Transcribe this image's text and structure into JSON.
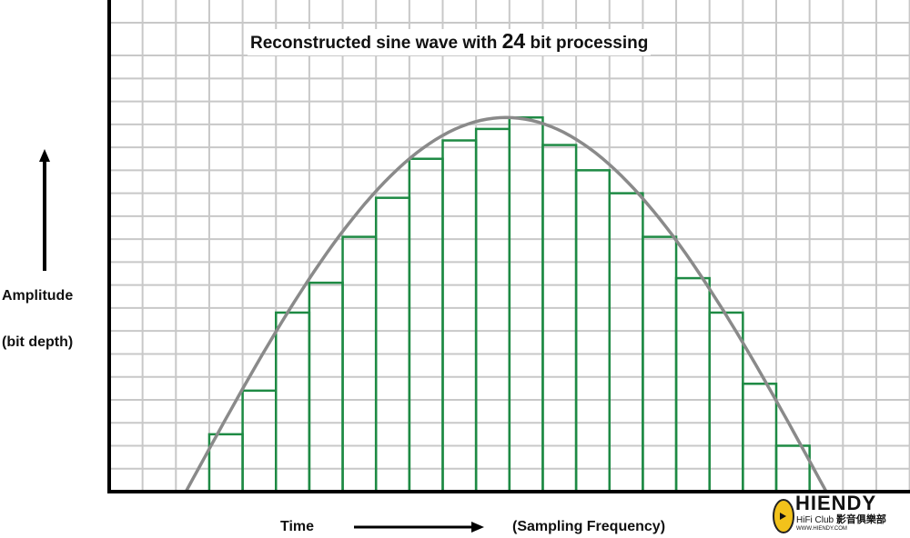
{
  "title": {
    "prefix": "Reconstructed sine wave with ",
    "bits": "24",
    "suffix": " bit processing"
  },
  "y_label": "Amplitude",
  "y_sublabel": "(bit depth)",
  "x_label": "Time",
  "x_sublabel": "(Sampling Frequency)",
  "watermark": {
    "name": "HIENDY",
    "sub": "HiFi Club",
    "cn": "影音俱樂部",
    "www": "WWW.HIENDY.COM"
  },
  "colors": {
    "steps": "#1e8a44",
    "curve": "#8a8a8a",
    "grid": "#c8c8c8",
    "axis": "#000000"
  },
  "chart_data": {
    "type": "step-over-sine",
    "title": "Reconstructed sine wave with 24 bit processing",
    "xlabel": "Time (Sampling Frequency)",
    "ylabel": "Amplitude (bit depth)",
    "xlim": [
      0,
      23.4
    ],
    "ylim": [
      0,
      20.6
    ],
    "grid": true,
    "steps": {
      "start": 3,
      "width": 1,
      "values": [
        2.5,
        4.4,
        7.8,
        9.1,
        11.1,
        12.8,
        14.5,
        15.3,
        15.8,
        16.3,
        15.1,
        14.0,
        13.0,
        11.1,
        9.3,
        7.8,
        4.7,
        2.0
      ]
    },
    "sine": {
      "x_start": 2.3,
      "x_end": 21.5,
      "peak": 16.3
    }
  }
}
